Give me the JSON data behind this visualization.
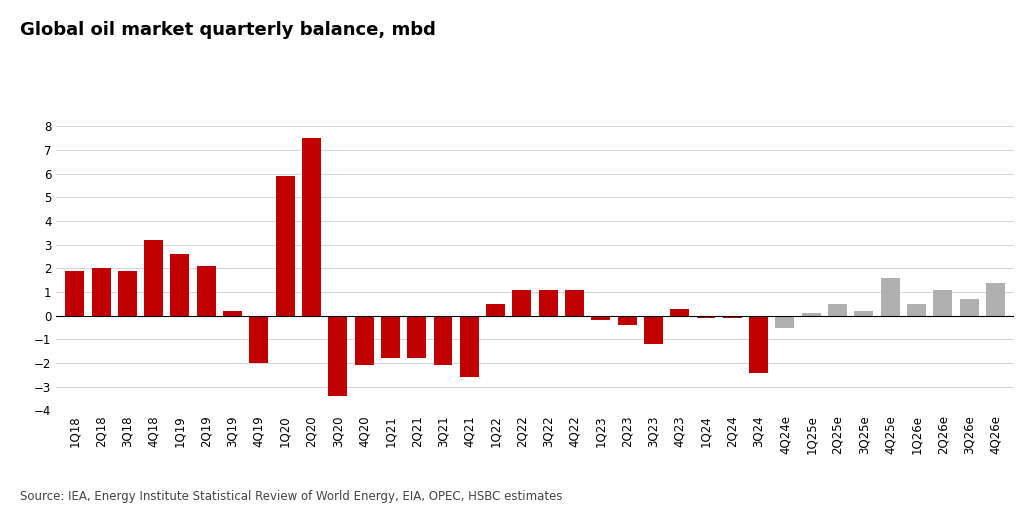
{
  "title": "Global oil market quarterly balance, mbd",
  "source": "Source: IEA, Energy Institute Statistical Review of World Energy, EIA, OPEC, HSBC estimates",
  "categories": [
    "1Q18",
    "2Q18",
    "3Q18",
    "4Q18",
    "1Q19",
    "2Q19",
    "3Q19",
    "4Q19",
    "1Q20",
    "2Q20",
    "3Q20",
    "4Q20",
    "1Q21",
    "2Q21",
    "3Q21",
    "4Q21",
    "1Q22",
    "2Q22",
    "3Q22",
    "4Q22",
    "1Q23",
    "2Q23",
    "3Q23",
    "4Q23",
    "1Q24",
    "2Q24",
    "3Q24",
    "4Q24e",
    "1Q25e",
    "2Q25e",
    "3Q25e",
    "4Q25e",
    "1Q26e",
    "2Q26e",
    "3Q26e",
    "4Q26e"
  ],
  "values": [
    1.9,
    2.0,
    1.9,
    3.2,
    2.6,
    2.1,
    0.2,
    -2.0,
    5.9,
    7.5,
    -3.4,
    -2.1,
    -1.8,
    -1.8,
    -2.1,
    -2.6,
    0.5,
    1.1,
    1.1,
    1.1,
    -0.2,
    -0.4,
    -1.2,
    0.3,
    -0.1,
    -0.1,
    -2.4,
    -0.5,
    0.1,
    0.5,
    0.2,
    1.6,
    0.5,
    1.1,
    0.7,
    1.4
  ],
  "colors": [
    "#c00000",
    "#c00000",
    "#c00000",
    "#c00000",
    "#c00000",
    "#c00000",
    "#c00000",
    "#c00000",
    "#c00000",
    "#c00000",
    "#c00000",
    "#c00000",
    "#c00000",
    "#c00000",
    "#c00000",
    "#c00000",
    "#c00000",
    "#c00000",
    "#c00000",
    "#c00000",
    "#c00000",
    "#c00000",
    "#c00000",
    "#c00000",
    "#c00000",
    "#c00000",
    "#c00000",
    "#b0b0b0",
    "#b0b0b0",
    "#b0b0b0",
    "#b0b0b0",
    "#b0b0b0",
    "#b0b0b0",
    "#b0b0b0",
    "#b0b0b0",
    "#b0b0b0"
  ],
  "ylim": [
    -4,
    9
  ],
  "yticks": [
    -4,
    -3,
    -2,
    -1,
    0,
    1,
    2,
    3,
    4,
    5,
    6,
    7,
    8
  ],
  "background_color": "#ffffff",
  "grid_color": "#d0d0d0",
  "title_fontsize": 13,
  "tick_fontsize": 8.5,
  "source_fontsize": 8.5
}
